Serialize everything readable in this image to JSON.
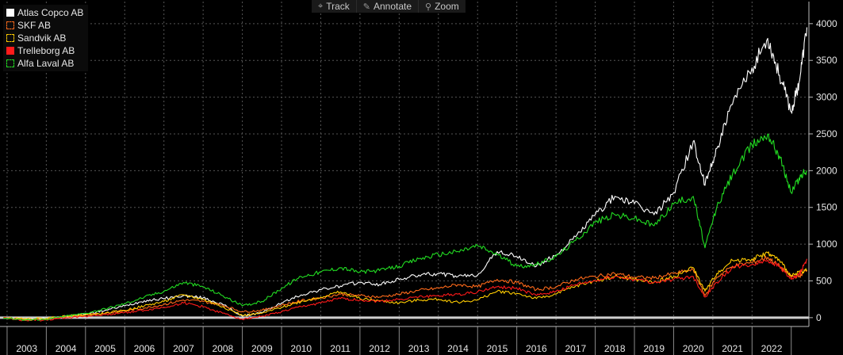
{
  "toolbar": {
    "track_label": "Track",
    "annotate_label": "Annotate",
    "zoom_label": "Zoom",
    "track_icon": "crosshair-icon",
    "annotate_icon": "pencil-icon",
    "zoom_icon": "magnifier-icon"
  },
  "chart_data": {
    "type": "line",
    "title": "",
    "xlabel": "",
    "ylabel": "",
    "background": "#000000",
    "grid": true,
    "legend_position": "top-left",
    "x_ticks": [
      "2003",
      "2004",
      "2005",
      "2006",
      "2007",
      "2008",
      "2009",
      "2010",
      "2011",
      "2012",
      "2013",
      "2014",
      "2015",
      "2016",
      "2017",
      "2018",
      "2019",
      "2020",
      "2021",
      "2022"
    ],
    "xlim": [
      2002.4,
      2022.95
    ],
    "y_ticks": [
      0,
      500,
      1000,
      1500,
      2000,
      2500,
      3000,
      3500,
      4000
    ],
    "ylim": [
      -120,
      4300
    ],
    "y_axis_side": "right",
    "x": [
      2002.4,
      2003.0,
      2003.5,
      2004.0,
      2004.5,
      2005.0,
      2005.5,
      2006.0,
      2006.5,
      2007.0,
      2007.5,
      2008.0,
      2008.5,
      2009.0,
      2009.5,
      2010.0,
      2010.5,
      2011.0,
      2011.5,
      2012.0,
      2012.5,
      2013.0,
      2013.5,
      2014.0,
      2014.5,
      2015.0,
      2015.5,
      2016.0,
      2016.5,
      2017.0,
      2017.5,
      2018.0,
      2018.5,
      2019.0,
      2019.5,
      2020.0,
      2020.3,
      2020.6,
      2021.0,
      2021.5,
      2021.9,
      2022.2,
      2022.5,
      2022.7,
      2022.9
    ],
    "series": [
      {
        "name": "Atlas Copco AB",
        "color": "#ffffff",
        "legend_style": "filled",
        "values": [
          0,
          -20,
          -10,
          20,
          50,
          100,
          160,
          230,
          260,
          300,
          270,
          180,
          20,
          70,
          200,
          310,
          380,
          430,
          480,
          450,
          520,
          580,
          600,
          560,
          580,
          900,
          830,
          700,
          850,
          1100,
          1400,
          1650,
          1550,
          1400,
          1700,
          2400,
          1800,
          2300,
          2900,
          3400,
          3800,
          3300,
          2800,
          3200,
          3950
        ]
      },
      {
        "name": "SKF AB",
        "color": "#ff6a1a",
        "legend_style": "dashed",
        "values": [
          0,
          -30,
          -20,
          10,
          40,
          60,
          90,
          130,
          180,
          240,
          220,
          170,
          80,
          100,
          170,
          230,
          270,
          320,
          300,
          280,
          320,
          370,
          400,
          450,
          420,
          520,
          480,
          380,
          420,
          520,
          560,
          600,
          550,
          540,
          600,
          650,
          300,
          550,
          700,
          750,
          820,
          700,
          560,
          560,
          650
        ]
      },
      {
        "name": "Sandvik AB",
        "color": "#ffcc00",
        "legend_style": "dashed",
        "values": [
          0,
          -20,
          -10,
          20,
          40,
          60,
          100,
          160,
          220,
          310,
          250,
          150,
          30,
          60,
          140,
          220,
          280,
          350,
          260,
          230,
          200,
          240,
          250,
          210,
          240,
          360,
          330,
          260,
          320,
          430,
          500,
          560,
          520,
          480,
          560,
          680,
          360,
          600,
          780,
          800,
          880,
          780,
          560,
          620,
          650
        ]
      },
      {
        "name": "Trelleborg AB",
        "color": "#ff1a1a",
        "legend_style": "filled",
        "values": [
          0,
          -40,
          -30,
          0,
          20,
          40,
          70,
          100,
          140,
          200,
          150,
          60,
          -20,
          20,
          80,
          150,
          200,
          260,
          240,
          220,
          250,
          280,
          300,
          320,
          350,
          420,
          400,
          300,
          360,
          450,
          500,
          560,
          520,
          480,
          520,
          560,
          280,
          480,
          680,
          720,
          780,
          700,
          520,
          580,
          800
        ]
      },
      {
        "name": "Alfa Laval AB",
        "color": "#22dd22",
        "legend_style": "dashed",
        "values": [
          0,
          -30,
          -20,
          20,
          60,
          120,
          190,
          280,
          360,
          480,
          420,
          300,
          160,
          220,
          400,
          560,
          620,
          680,
          620,
          640,
          700,
          800,
          860,
          900,
          980,
          860,
          700,
          720,
          830,
          1050,
          1300,
          1400,
          1350,
          1250,
          1550,
          1650,
          950,
          1500,
          1950,
          2350,
          2500,
          2200,
          1700,
          1900,
          2000
        ]
      }
    ]
  }
}
